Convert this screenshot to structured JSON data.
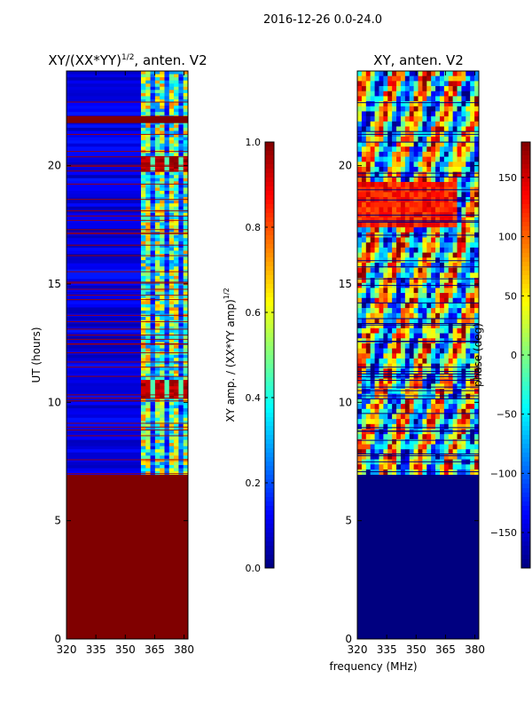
{
  "figure": {
    "suptitle": "2016-12-26 0.0-24.0",
    "shared_xlabel": "frequency (MHz)"
  },
  "chart_data": [
    {
      "type": "heatmap",
      "title_text": "XY/(XX*YY)",
      "title_exponent": "1/2",
      "title_suffix": ", anten. V2",
      "xlabel": "",
      "ylabel": "UT (hours)",
      "xlim": [
        320,
        382
      ],
      "ylim": [
        0,
        24
      ],
      "xticks": [
        320,
        335,
        350,
        365,
        380
      ],
      "yticks": [
        0,
        5,
        10,
        15,
        20
      ],
      "colormap": "jet",
      "colorbar": {
        "label_text": "XY amp. / (XX*YY amp)",
        "label_exponent": "1/2",
        "range": [
          0.0,
          1.0
        ],
        "ticks": [
          "0.0",
          "0.2",
          "0.4",
          "0.6",
          "0.8",
          "1.0"
        ]
      },
      "regions": [
        {
          "desc": "no data (saturated)",
          "ut": [
            0,
            6.95
          ],
          "value": 1.0
        },
        {
          "desc": "low background",
          "ut": [
            6.95,
            24
          ],
          "freq": [
            320,
            358
          ],
          "value": 0.08
        },
        {
          "desc": "striped RFI band",
          "ut": [
            6.95,
            24
          ],
          "freq": [
            358,
            382
          ],
          "value": 0.5
        },
        {
          "desc": "strong RFI patch",
          "ut": [
            10.2,
            10.9
          ],
          "freq": [
            358,
            382
          ],
          "value": 0.95
        },
        {
          "desc": "strong RFI patch",
          "ut": [
            19.7,
            20.4
          ],
          "freq": [
            358,
            382
          ],
          "value": 0.95
        },
        {
          "desc": "flagged row",
          "ut": [
            21.8,
            22.1
          ],
          "value": 1.0
        }
      ]
    },
    {
      "type": "heatmap",
      "title": "XY, anten. V2",
      "xlabel": "",
      "ylabel": "",
      "xlim": [
        320,
        382
      ],
      "ylim": [
        0,
        24
      ],
      "xticks": [
        320,
        335,
        350,
        365,
        380
      ],
      "yticks": [
        0,
        5,
        10,
        15,
        20
      ],
      "colormap": "jet",
      "colorbar": {
        "label": "phase (deg)",
        "range": [
          -180,
          180
        ],
        "ticks": [
          "150",
          "100",
          "50",
          "0",
          "−50",
          "−100",
          "−150"
        ]
      },
      "regions": [
        {
          "desc": "no data",
          "ut": [
            0,
            6.95
          ],
          "value": -180
        },
        {
          "desc": "noisy phase",
          "ut": [
            6.95,
            24
          ],
          "freq": [
            320,
            382
          ],
          "value_range": [
            -180,
            180
          ]
        },
        {
          "desc": "warm phase block",
          "ut": [
            17.3,
            19.3
          ],
          "freq": [
            320,
            370
          ],
          "value": 130
        }
      ]
    }
  ]
}
